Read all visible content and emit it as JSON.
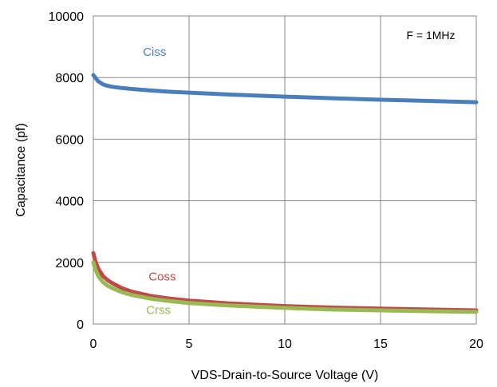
{
  "chart_data": {
    "type": "line",
    "title": "",
    "xlabel": "VDS-Drain-to-Source Voltage (V)",
    "ylabel": "Capacitance (pf)",
    "xlim": [
      0,
      20
    ],
    "ylim": [
      0,
      10000
    ],
    "xticks": [
      "0",
      "5",
      "10",
      "15",
      "20"
    ],
    "yticks": [
      "0",
      "2000",
      "4000",
      "6000",
      "8000",
      "10000"
    ],
    "grid": true,
    "annotation": "F = 1MHz",
    "series": [
      {
        "name": "Ciss",
        "color": "#4a7ebb",
        "x": [
          0,
          0.1,
          0.25,
          0.5,
          0.75,
          1,
          1.5,
          2,
          3,
          4,
          5,
          7,
          10,
          12.5,
          15,
          17.5,
          20
        ],
        "values": [
          8080,
          8000,
          7880,
          7780,
          7730,
          7700,
          7660,
          7630,
          7580,
          7540,
          7510,
          7450,
          7380,
          7330,
          7280,
          7240,
          7200
        ]
      },
      {
        "name": "Coss",
        "color": "#be4b48",
        "x": [
          0,
          0.1,
          0.25,
          0.5,
          0.75,
          1,
          1.5,
          2,
          3,
          4,
          5,
          7,
          10,
          12.5,
          15,
          17.5,
          20
        ],
        "values": [
          2300,
          2050,
          1800,
          1560,
          1420,
          1320,
          1160,
          1050,
          910,
          820,
          760,
          670,
          580,
          530,
          500,
          470,
          440
        ]
      },
      {
        "name": "Crss",
        "color": "#98b954",
        "x": [
          0,
          0.1,
          0.25,
          0.5,
          0.75,
          1,
          1.5,
          2,
          3,
          4,
          5,
          7,
          10,
          12.5,
          15,
          17.5,
          20
        ],
        "values": [
          2000,
          1780,
          1560,
          1360,
          1240,
          1160,
          1030,
          940,
          820,
          740,
          680,
          600,
          520,
          470,
          440,
          415,
          390
        ]
      }
    ]
  }
}
